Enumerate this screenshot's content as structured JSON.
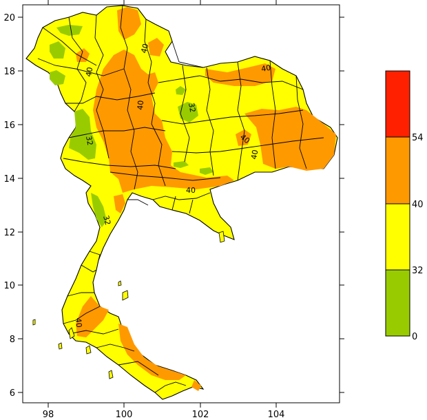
{
  "map": {
    "x_ticks": [
      "98",
      "100",
      "102",
      "104"
    ],
    "y_ticks": [
      "20",
      "18",
      "16",
      "14",
      "12",
      "10",
      "8",
      "6"
    ],
    "contour_labels": [
      "40",
      "40",
      "40",
      "40",
      "40",
      "40",
      "32",
      "32",
      "32",
      "40",
      "40"
    ]
  },
  "legend": {
    "labels": [
      "54",
      "40",
      "32",
      "0"
    ],
    "colors": [
      "#ff2000",
      "#ff9900",
      "#ffff00",
      "#99cc00"
    ]
  }
}
